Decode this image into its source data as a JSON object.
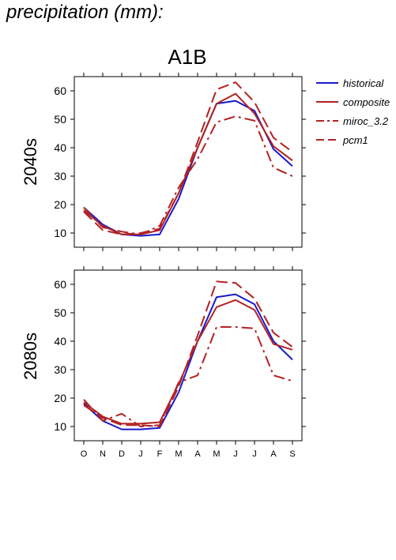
{
  "heading": "precipitation (mm):",
  "chart_data": {
    "type": "line",
    "title": "A1B",
    "categories": [
      "O",
      "N",
      "D",
      "J",
      "F",
      "M",
      "A",
      "M",
      "J",
      "J",
      "A",
      "S"
    ],
    "ylim": [
      5,
      65
    ],
    "yticks": [
      10,
      20,
      30,
      40,
      50,
      60
    ],
    "grid": false,
    "legend_position": "top-right",
    "legend": [
      {
        "name": "historical",
        "color": "#1a1acc",
        "style": "solid"
      },
      {
        "name": "composite",
        "color": "#b22222",
        "style": "solid"
      },
      {
        "name": "miroc_3.2",
        "color": "#b22222",
        "style": "dashdot"
      },
      {
        "name": "pcm1",
        "color": "#b22222",
        "style": "dashed"
      }
    ],
    "panels": [
      {
        "label": "2040s",
        "series": [
          {
            "name": "historical",
            "values": [
              19,
              13,
              9.5,
              9,
              9.5,
              22,
              40,
              55.5,
              56.5,
              53,
              39.5,
              33.5
            ]
          },
          {
            "name": "composite",
            "values": [
              18,
              12.5,
              9.5,
              9.5,
              11,
              24,
              40,
              55.5,
              59,
              52,
              40.5,
              35.5
            ]
          },
          {
            "name": "miroc_3.2",
            "values": [
              19,
              12,
              10.5,
              9.5,
              12.5,
              26,
              36,
              49,
              51,
              49.5,
              33,
              30
            ]
          },
          {
            "name": "pcm1",
            "values": [
              17.5,
              11,
              9.5,
              10,
              11.5,
              24,
              42,
              60.5,
              63,
              56,
              43.5,
              38.5
            ]
          }
        ]
      },
      {
        "label": "2080s",
        "series": [
          {
            "name": "historical",
            "values": [
              18,
              12,
              9,
              9,
              9.5,
              22,
              40,
              55.5,
              56.5,
              53,
              40,
              33.5
            ]
          },
          {
            "name": "composite",
            "values": [
              18.5,
              13.5,
              11,
              11,
              11.5,
              25,
              40,
              52,
              54.5,
              51,
              39,
              37
            ]
          },
          {
            "name": "miroc_3.2",
            "values": [
              19.5,
              12,
              14.5,
              10,
              10.5,
              25.5,
              28,
              45,
              45,
              44.5,
              28,
              26
            ]
          },
          {
            "name": "pcm1",
            "values": [
              17.5,
              13,
              10.5,
              10.5,
              10,
              24,
              42,
              61,
              60.5,
              55,
              43,
              38
            ]
          }
        ]
      }
    ]
  }
}
